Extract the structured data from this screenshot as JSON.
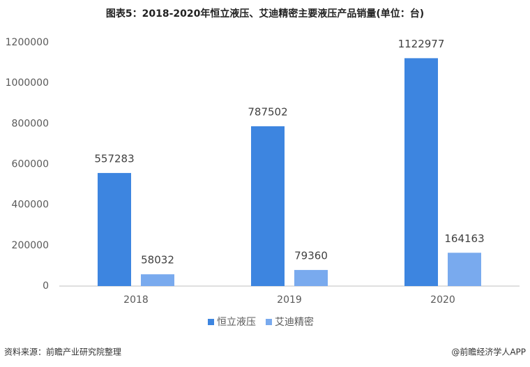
{
  "chart_data": {
    "type": "bar",
    "title": "图表5：2018-2020年恒立液压、艾迪精密主要液压产品销量(单位：台)",
    "categories": [
      "2018",
      "2019",
      "2020"
    ],
    "series": [
      {
        "name": "恒立液压",
        "color": "#3d85e0",
        "values": [
          557283,
          787502,
          1122977
        ]
      },
      {
        "name": "艾迪精密",
        "color": "#79aaee",
        "values": [
          58032,
          79360,
          164163
        ]
      }
    ],
    "ylim": [
      0,
      1200000
    ],
    "yticks": [
      0,
      200000,
      400000,
      600000,
      800000,
      1000000,
      1200000
    ],
    "grid": false,
    "legend": "bottom",
    "source": "资料来源：前瞻产业研究院整理",
    "credit": "@前瞻经济学人APP"
  }
}
